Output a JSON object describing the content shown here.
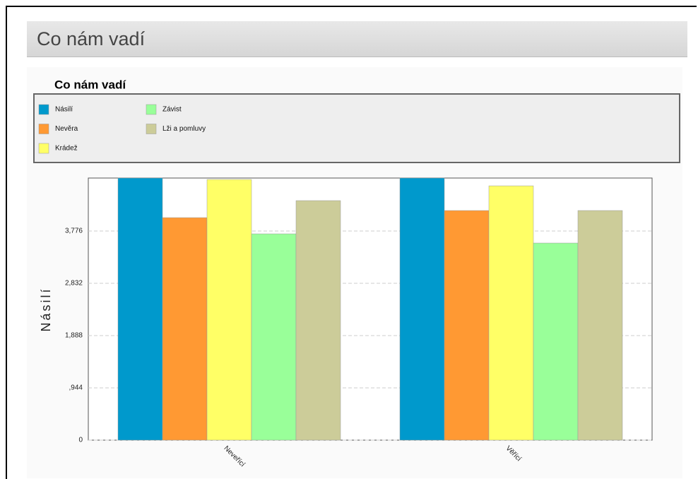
{
  "header": {
    "title": "Co nám vadí"
  },
  "chart_data": {
    "type": "bar",
    "title": "Co nám vadí",
    "y_label": "Násilí",
    "categories": [
      "Neveřící",
      "Věřící"
    ],
    "series": [
      {
        "name": "Násilí",
        "color": "#0099cc",
        "values": [
          4.733,
          4.733
        ]
      },
      {
        "name": "Nevěra",
        "color": "#ff9933",
        "values": [
          4.018,
          4.146
        ]
      },
      {
        "name": "Krádež",
        "color": "#ffff66",
        "values": [
          4.707,
          4.592
        ]
      },
      {
        "name": "Závist",
        "color": "#99ff99",
        "values": [
          3.725,
          3.559
        ]
      },
      {
        "name": "Lži a pomluvy",
        "color": "#cccc99",
        "values": [
          4.325,
          4.146
        ]
      }
    ],
    "ylim": [
      0,
      4.733
    ],
    "yticks": [
      0,
      {
        "value": 0.944,
        "label": ",944"
      },
      {
        "value": 1.888,
        "label": "1,888"
      },
      {
        "value": 2.832,
        "label": "2,832"
      },
      {
        "value": 3.776,
        "label": "3,776"
      }
    ],
    "grid": true
  }
}
